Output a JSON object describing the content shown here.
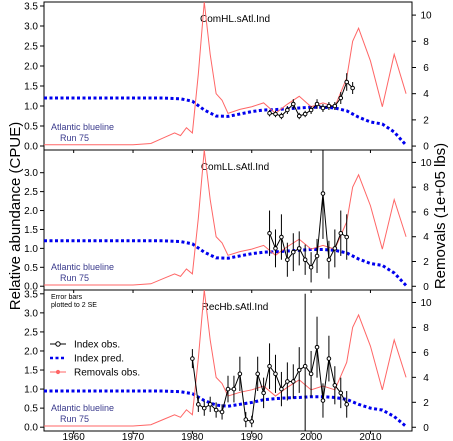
{
  "figure": {
    "ylabel_left": "Relative abundance (CPUE)",
    "ylabel_right": "Removals (1e+05 lbs)",
    "x_ticks": [
      "1960",
      "1970",
      "1980",
      "1990",
      "2000",
      "2010"
    ],
    "colors": {
      "index": "#000000",
      "pred": "#0000ee",
      "removals": "#ff6666",
      "note": "#3a3a8c"
    }
  },
  "chart_data": [
    {
      "type": "line",
      "title": "ComHL.sAtl.Ind",
      "note_line1": "Atlantic blueline",
      "note_line2": "Run 75",
      "xlim": [
        1955,
        2017
      ],
      "ylim_left": [
        -0.1,
        3.6
      ],
      "ylim_right": [
        -0.3,
        11
      ],
      "y_ticks_left": [
        "0.0",
        "0.5",
        "1.0",
        "1.5",
        "2.0",
        "2.5",
        "3.0",
        "3.5"
      ],
      "y_ticks_right": [
        "0",
        "2",
        "4",
        "6",
        "8",
        "10"
      ],
      "series": [
        {
          "name": "Index pred.",
          "axis": "left",
          "x": [
            1955,
            1960,
            1965,
            1970,
            1975,
            1978,
            1980,
            1982,
            1984,
            1986,
            1988,
            1990,
            1992,
            1994,
            1996,
            1998,
            2000,
            2002,
            2004,
            2006,
            2008,
            2010,
            2012,
            2014,
            2016
          ],
          "y": [
            1.2,
            1.2,
            1.2,
            1.2,
            1.2,
            1.18,
            1.12,
            0.9,
            0.75,
            0.74,
            0.8,
            0.86,
            0.9,
            0.91,
            0.93,
            0.95,
            0.97,
            0.97,
            0.95,
            0.88,
            0.72,
            0.6,
            0.55,
            0.35,
            0.02
          ]
        },
        {
          "name": "Removals obs.",
          "axis": "right",
          "x": [
            1955,
            1960,
            1965,
            1970,
            1973,
            1975,
            1977,
            1978,
            1979,
            1980,
            1981,
            1982,
            1983,
            1984,
            1985,
            1986,
            1988,
            1990,
            1992,
            1994,
            1996,
            1998,
            2000,
            2002,
            2004,
            2006,
            2007,
            2008,
            2010,
            2012,
            2014,
            2016
          ],
          "y": [
            0.1,
            0.1,
            0.1,
            0.1,
            0.2,
            0.6,
            1.0,
            0.8,
            1.4,
            1.0,
            5.5,
            11,
            7,
            4,
            3.5,
            2.5,
            2.8,
            3.0,
            3.3,
            2.5,
            3.2,
            3.8,
            3.0,
            3.3,
            3.0,
            5.2,
            8.0,
            9.0,
            6.5,
            3.0,
            7.0,
            4.0
          ]
        },
        {
          "name": "Index obs.",
          "axis": "left",
          "x": [
            1993,
            1994,
            1995,
            1996,
            1997,
            1998,
            1999,
            2000,
            2001,
            2002,
            2003,
            2004,
            2005,
            2006,
            2007
          ],
          "y": [
            0.82,
            0.8,
            0.75,
            0.9,
            1.05,
            0.75,
            0.8,
            0.9,
            1.05,
            0.95,
            1.0,
            1.0,
            1.2,
            1.6,
            1.45
          ],
          "err": [
            0.08,
            0.08,
            0.08,
            0.1,
            0.12,
            0.08,
            0.08,
            0.1,
            0.12,
            0.1,
            0.1,
            0.1,
            0.15,
            0.22,
            0.15
          ]
        }
      ]
    },
    {
      "type": "line",
      "title": "ComLL.sAtl.Ind",
      "note_line1": "Atlantic blueline",
      "note_line2": "Run 75",
      "xlim": [
        1955,
        2017
      ],
      "ylim_left": [
        -0.1,
        3.6
      ],
      "ylim_right": [
        -0.3,
        11
      ],
      "y_ticks_left": [
        "0.0",
        "0.5",
        "1.0",
        "1.5",
        "2.0",
        "2.5",
        "3.0"
      ],
      "y_ticks_right": [
        "0",
        "2",
        "4",
        "6",
        "8",
        "10"
      ],
      "series": [
        {
          "name": "Index pred.",
          "axis": "left",
          "x": [
            1955,
            1960,
            1965,
            1970,
            1975,
            1978,
            1980,
            1982,
            1984,
            1986,
            1988,
            1990,
            1992,
            1994,
            1996,
            1998,
            2000,
            2002,
            2004,
            2006,
            2008,
            2010,
            2012,
            2014,
            2016
          ],
          "y": [
            1.2,
            1.2,
            1.2,
            1.2,
            1.2,
            1.18,
            1.12,
            0.9,
            0.75,
            0.74,
            0.8,
            0.86,
            0.9,
            0.91,
            0.93,
            0.95,
            0.97,
            0.97,
            0.95,
            0.88,
            0.72,
            0.6,
            0.55,
            0.35,
            0.02
          ]
        },
        {
          "name": "Removals obs.",
          "axis": "right",
          "x": [
            1955,
            1960,
            1965,
            1970,
            1973,
            1975,
            1977,
            1978,
            1979,
            1980,
            1981,
            1982,
            1983,
            1984,
            1985,
            1986,
            1988,
            1990,
            1992,
            1994,
            1996,
            1998,
            2000,
            2002,
            2004,
            2006,
            2007,
            2008,
            2010,
            2012,
            2014,
            2016
          ],
          "y": [
            0.1,
            0.1,
            0.1,
            0.1,
            0.2,
            0.6,
            1.0,
            0.8,
            1.4,
            1.0,
            5.5,
            11,
            7,
            4,
            3.5,
            2.5,
            2.8,
            3.0,
            3.3,
            2.5,
            3.2,
            3.8,
            3.0,
            3.3,
            3.0,
            5.2,
            8.0,
            9.0,
            6.5,
            3.0,
            7.0,
            4.0
          ]
        },
        {
          "name": "Index obs.",
          "axis": "left",
          "x": [
            1993,
            1994,
            1995,
            1996,
            1997,
            1998,
            1999,
            2000,
            2001,
            2002,
            2003,
            2004,
            2005,
            2006
          ],
          "y": [
            1.4,
            1.0,
            1.3,
            0.7,
            0.9,
            1.0,
            0.7,
            0.5,
            0.8,
            2.45,
            0.7,
            1.0,
            1.4,
            1.3
          ],
          "err": [
            0.6,
            0.5,
            0.6,
            0.45,
            0.5,
            0.45,
            0.4,
            0.4,
            0.45,
            1.2,
            0.5,
            0.5,
            0.6,
            0.6
          ]
        }
      ]
    },
    {
      "type": "line",
      "title": "RecHb.sAtl.Ind",
      "note_line1": "Atlantic blueline",
      "note_line2": "Run 75",
      "error_note_1": "Error bars",
      "error_note_2": "plotted to 2 SE",
      "xlim": [
        1955,
        2017
      ],
      "ylim_left": [
        -0.1,
        3.6
      ],
      "ylim_right": [
        -0.3,
        11
      ],
      "y_ticks_left": [
        "0.0",
        "0.5",
        "1.0",
        "1.5",
        "2.0",
        "2.5",
        "3.0",
        "3.5"
      ],
      "y_ticks_right": [
        "0",
        "2",
        "4",
        "6",
        "8",
        "10"
      ],
      "legend": [
        "Index obs.",
        "Index pred.",
        "Removals obs."
      ],
      "legend_position": "left",
      "series": [
        {
          "name": "Index pred.",
          "axis": "left",
          "x": [
            1955,
            1960,
            1965,
            1970,
            1975,
            1978,
            1980,
            1982,
            1984,
            1986,
            1988,
            1990,
            1992,
            1994,
            1996,
            1998,
            2000,
            2002,
            2004,
            2006,
            2008,
            2010,
            2012,
            2014,
            2016
          ],
          "y": [
            0.95,
            0.95,
            0.95,
            0.95,
            0.95,
            0.93,
            0.88,
            0.7,
            0.58,
            0.55,
            0.6,
            0.65,
            0.72,
            0.75,
            0.77,
            0.78,
            0.8,
            0.8,
            0.78,
            0.73,
            0.6,
            0.5,
            0.45,
            0.28,
            0.02
          ]
        },
        {
          "name": "Removals obs.",
          "axis": "right",
          "x": [
            1955,
            1960,
            1965,
            1970,
            1973,
            1975,
            1977,
            1978,
            1979,
            1980,
            1981,
            1982,
            1983,
            1984,
            1985,
            1986,
            1988,
            1990,
            1992,
            1994,
            1996,
            1998,
            2000,
            2002,
            2004,
            2006,
            2007,
            2008,
            2010,
            2012,
            2014,
            2016
          ],
          "y": [
            0.1,
            0.1,
            0.1,
            0.1,
            0.2,
            0.6,
            1.0,
            0.8,
            1.4,
            1.0,
            5.5,
            11,
            7,
            4,
            3.5,
            2.5,
            2.8,
            3.0,
            3.3,
            2.5,
            3.2,
            3.8,
            3.0,
            3.3,
            3.0,
            5.2,
            8.0,
            9.0,
            6.5,
            3.0,
            7.0,
            4.0
          ]
        },
        {
          "name": "Index obs.",
          "axis": "left",
          "x": [
            1980,
            1981,
            1982,
            1983,
            1984,
            1985,
            1986,
            1987,
            1988,
            1989,
            1990,
            1991,
            1992,
            1993,
            1994,
            1995,
            1996,
            1997,
            1998,
            1999,
            2000,
            2001,
            2002,
            2003,
            2004,
            2005,
            2006
          ],
          "y": [
            1.8,
            0.6,
            0.5,
            0.6,
            0.45,
            0.4,
            1.0,
            1.0,
            1.4,
            0.2,
            0.15,
            1.4,
            0.9,
            1.6,
            1.4,
            1.0,
            1.2,
            1.2,
            1.5,
            1.6,
            1.4,
            2.1,
            0.7,
            1.8,
            1.1,
            0.9,
            0.6
          ],
          "err": [
            0.25,
            0.2,
            0.2,
            0.2,
            0.2,
            0.2,
            0.35,
            0.35,
            0.45,
            0.2,
            0.15,
            0.45,
            0.4,
            0.6,
            0.5,
            0.45,
            0.5,
            0.45,
            0.6,
            1.9,
            0.6,
            0.8,
            0.45,
            0.6,
            0.5,
            0.4,
            0.35
          ]
        }
      ]
    }
  ]
}
